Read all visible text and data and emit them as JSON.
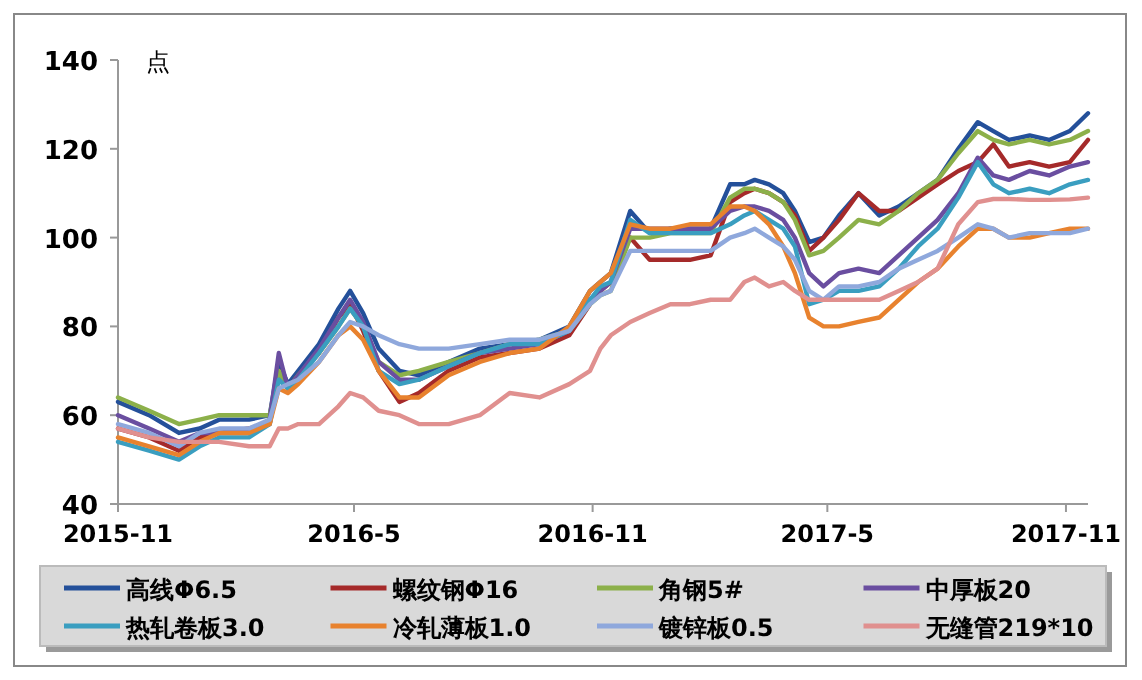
{
  "chart_data": {
    "type": "line",
    "ylabel": "点",
    "legend": "bottom",
    "grid": false,
    "x": [
      "2015-11-01",
      "2015-11-25",
      "2015-12-18",
      "2016-01-03",
      "2016-01-18",
      "2016-02-10",
      "2016-02-26",
      "2016-03-04",
      "2016-03-11",
      "2016-03-19",
      "2016-04-04",
      "2016-04-19",
      "2016-04-28",
      "2016-05-08",
      "2016-05-20",
      "2016-06-05",
      "2016-06-20",
      "2016-07-13",
      "2016-08-06",
      "2016-08-29",
      "2016-09-21",
      "2016-10-14",
      "2016-10-30",
      "2016-11-07",
      "2016-11-15",
      "2016-11-30",
      "2016-12-15",
      "2016-12-31",
      "2017-01-15",
      "2017-01-31",
      "2017-02-15",
      "2017-02-26",
      "2017-03-06",
      "2017-03-17",
      "2017-03-28",
      "2017-04-06",
      "2017-04-17",
      "2017-04-28",
      "2017-05-10",
      "2017-05-25",
      "2017-06-10",
      "2017-06-25",
      "2017-07-10",
      "2017-07-25",
      "2017-08-10",
      "2017-08-25",
      "2017-09-06",
      "2017-09-18",
      "2017-10-04",
      "2017-10-19",
      "2017-11-04",
      "2017-11-18"
    ],
    "xlim": [
      "2015-11-01",
      "2017-11-18"
    ],
    "xticks": [
      {
        "value": "2015-11-01",
        "label": "2015-11"
      },
      {
        "value": "2016-05-01",
        "label": "2016-5"
      },
      {
        "value": "2016-11-01",
        "label": "2016-11"
      },
      {
        "value": "2017-05-01",
        "label": "2017-5"
      },
      {
        "value": "2017-11-01",
        "label": "2017-11"
      }
    ],
    "ylim": [
      40,
      140
    ],
    "yticks": [
      40,
      60,
      80,
      100,
      120,
      140
    ],
    "series": [
      {
        "name": "高线Φ6.5",
        "color": "#24509a",
        "values": [
          63,
          60,
          56,
          57,
          59,
          59,
          60,
          72,
          67,
          70,
          76,
          84,
          88,
          83,
          75,
          70,
          69,
          72,
          75,
          76,
          77,
          80,
          88,
          90,
          92,
          106,
          101,
          102,
          102,
          102,
          112,
          112,
          113,
          112,
          110,
          106,
          99,
          100,
          105,
          110,
          105,
          107,
          110,
          113,
          120,
          126,
          124,
          122,
          123,
          122,
          124,
          128
        ]
      },
      {
        "name": "螺纹钢Φ16",
        "color": "#a52a2a",
        "values": [
          57,
          55,
          52,
          55,
          56,
          57,
          58,
          70,
          66,
          69,
          74,
          82,
          85,
          79,
          70,
          63,
          65,
          70,
          73,
          74,
          75,
          78,
          85,
          88,
          90,
          100,
          95,
          95,
          95,
          96,
          108,
          110,
          111,
          110,
          108,
          105,
          97,
          100,
          104,
          110,
          106,
          106,
          109,
          112,
          115,
          117,
          121,
          116,
          117,
          116,
          117,
          122
        ]
      },
      {
        "name": "角钢5#",
        "color": "#8cb04a",
        "values": [
          64,
          61,
          58,
          59,
          60,
          60,
          60,
          70,
          66,
          69,
          74,
          80,
          84,
          80,
          72,
          69,
          70,
          72,
          74,
          76,
          77,
          79,
          85,
          87,
          88,
          100,
          100,
          101,
          101,
          101,
          109,
          111,
          111,
          110,
          108,
          104,
          96,
          97,
          100,
          104,
          103,
          106,
          110,
          113,
          119,
          124,
          122,
          121,
          122,
          121,
          122,
          124
        ]
      },
      {
        "name": "中厚板20",
        "color": "#6a4ea0",
        "values": [
          60,
          57,
          54,
          56,
          56,
          56,
          59,
          74,
          66,
          69,
          75,
          82,
          86,
          81,
          72,
          68,
          68,
          71,
          74,
          75,
          76,
          79,
          86,
          88,
          90,
          102,
          102,
          102,
          102,
          102,
          106,
          107,
          107,
          106,
          104,
          100,
          92,
          89,
          92,
          93,
          92,
          96,
          100,
          104,
          110,
          118,
          114,
          113,
          115,
          114,
          116,
          117
        ]
      },
      {
        "name": "热轧卷板3.0",
        "color": "#3a9ec0",
        "values": [
          54,
          52,
          50,
          53,
          55,
          55,
          58,
          68,
          66,
          68,
          74,
          80,
          84,
          80,
          70,
          67,
          68,
          71,
          74,
          76,
          76,
          79,
          86,
          89,
          90,
          104,
          101,
          101,
          101,
          101,
          103,
          105,
          106,
          104,
          102,
          98,
          85,
          86,
          88,
          88,
          89,
          93,
          98,
          102,
          109,
          117,
          112,
          110,
          111,
          110,
          112,
          113
        ]
      },
      {
        "name": "冷轧薄板1.0",
        "color": "#e8822e",
        "values": [
          55,
          53,
          51,
          54,
          56,
          56,
          58,
          66,
          65,
          67,
          72,
          78,
          80,
          77,
          70,
          64,
          64,
          69,
          72,
          74,
          75,
          80,
          88,
          90,
          92,
          103,
          102,
          102,
          103,
          103,
          107,
          107,
          106,
          103,
          98,
          92,
          82,
          80,
          80,
          81,
          82,
          86,
          90,
          93,
          98,
          102,
          102,
          100,
          100,
          101,
          102,
          102
        ]
      },
      {
        "name": "镀锌板0.5",
        "color": "#8fa8dc",
        "values": [
          58,
          56,
          53,
          56,
          57,
          57,
          59,
          66,
          67,
          68,
          72,
          78,
          81,
          80,
          78,
          76,
          75,
          75,
          76,
          77,
          77,
          79,
          85,
          87,
          88,
          97,
          97,
          97,
          97,
          97,
          100,
          101,
          102,
          100,
          98,
          95,
          88,
          86,
          89,
          89,
          90,
          93,
          95,
          97,
          100,
          103,
          102,
          100,
          101,
          101,
          101,
          102
        ]
      },
      {
        "name": "无缝管219*10",
        "color": "#e0908f",
        "values": [
          57,
          55,
          54,
          54,
          54,
          53,
          53,
          57,
          57,
          58,
          58,
          62,
          65,
          64,
          61,
          60,
          58,
          58,
          60,
          65,
          64,
          67,
          70,
          75,
          78,
          81,
          83,
          85,
          85,
          86,
          86,
          90,
          91,
          89,
          90,
          88,
          86,
          86,
          86,
          86,
          86,
          88,
          90,
          93,
          103,
          108,
          108.7,
          108.7,
          108.5,
          108.5,
          108.6,
          109
        ]
      }
    ]
  }
}
